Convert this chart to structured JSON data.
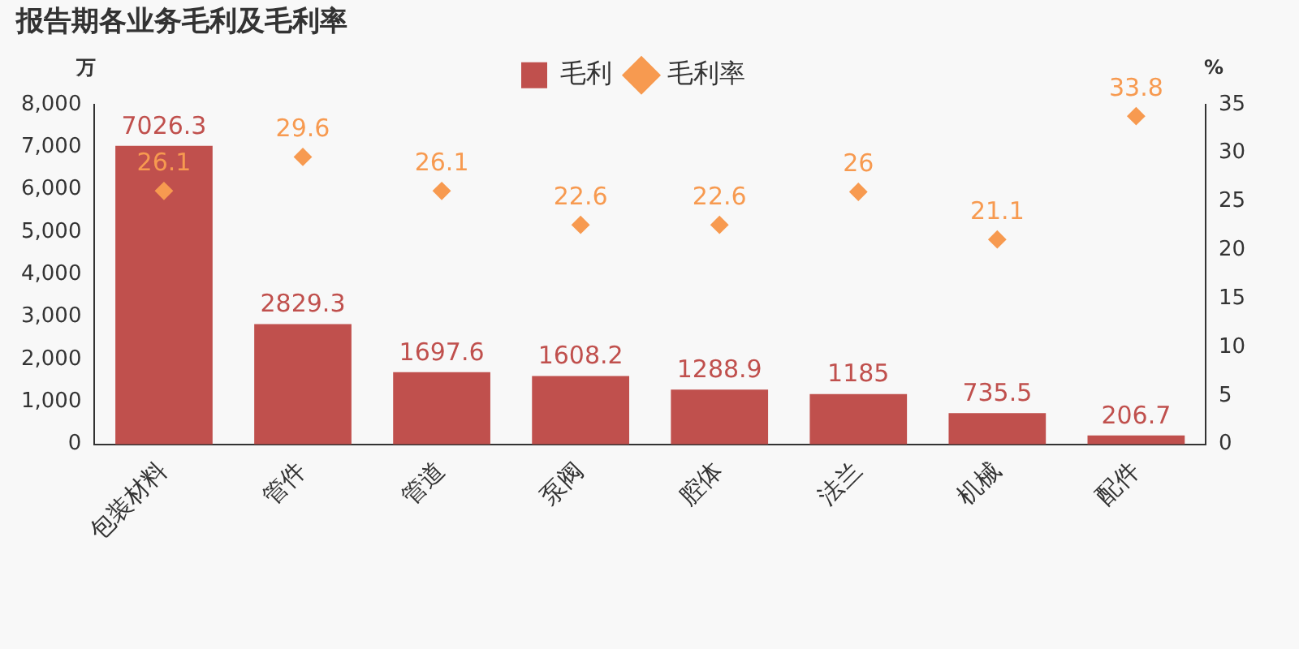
{
  "chart_data": {
    "type": "bar",
    "title": "报告期各业务毛利及毛利率",
    "categories": [
      "包装材料",
      "管件",
      "管道",
      "泵阀",
      "腔体",
      "法兰",
      "机械",
      "配件"
    ],
    "ylabel": "万",
    "y2label": "%",
    "series": [
      {
        "name": "毛利",
        "color": "#c0504d",
        "values": [
          7026.3,
          2829.3,
          1697.6,
          1608.2,
          1288.9,
          1185,
          735.5,
          206.7
        ]
      },
      {
        "name": "毛利率",
        "type": "scatter",
        "axis": "y2",
        "color": "#f79a50",
        "marker": "diamond",
        "values": [
          26.1,
          29.6,
          26.1,
          22.6,
          22.6,
          26,
          21.1,
          33.8
        ]
      }
    ],
    "ylim": [
      0,
      8000
    ],
    "yticks": [
      0,
      {
        "value": 1000,
        "label": "1,000"
      },
      {
        "value": 2000,
        "label": "2,000"
      },
      {
        "value": 3000,
        "label": "3,000"
      },
      {
        "value": 4000,
        "label": "4,000"
      },
      {
        "value": 5000,
        "label": "5,000"
      },
      {
        "value": 6000,
        "label": "6,000"
      },
      {
        "value": 7000,
        "label": "7,000"
      },
      {
        "value": 8000,
        "label": "8,000"
      }
    ],
    "y2lim": [
      0,
      35
    ],
    "y2ticks": [
      0,
      5,
      10,
      15,
      20,
      25,
      30,
      35
    ],
    "data_labels": true,
    "grid": false,
    "legend": "top"
  }
}
